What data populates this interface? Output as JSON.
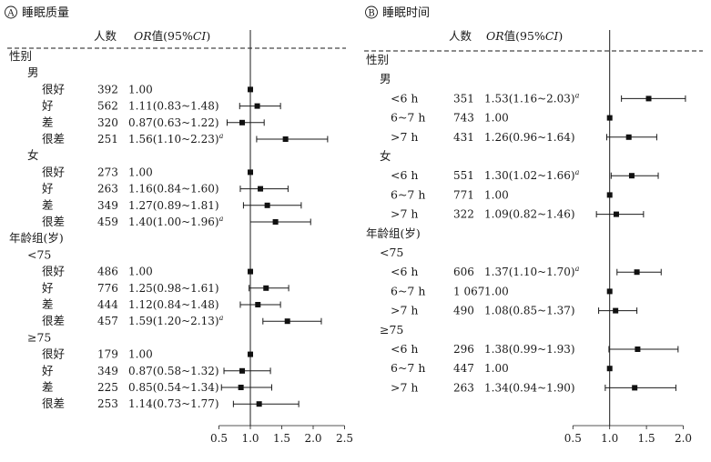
{
  "chart_data": [
    {
      "type": "forest",
      "panel_label": "A",
      "title": "睡眠质量",
      "header_n": "人数",
      "header_or_italic": "OR",
      "header_or_rest": "值(95%",
      "header_ci_italic": "CI",
      "header_close": ")",
      "xlim": [
        0.5,
        2.5
      ],
      "xticks": [
        "0.5",
        "1.0",
        "1.5",
        "2.0",
        "2.5"
      ],
      "ref_line": 1.0,
      "rows": [
        {
          "kind": "group",
          "label": "性别"
        },
        {
          "kind": "sub",
          "label": "男"
        },
        {
          "kind": "item",
          "label": "很好",
          "n": "392",
          "text": "1.00",
          "or": 1.0,
          "lo": 1.0,
          "hi": 1.0,
          "sig": ""
        },
        {
          "kind": "item",
          "label": "好",
          "n": "562",
          "text": "1.11(0.83~1.48)",
          "or": 1.11,
          "lo": 0.83,
          "hi": 1.48,
          "sig": ""
        },
        {
          "kind": "item",
          "label": "差",
          "n": "320",
          "text": "0.87(0.63~1.22)",
          "or": 0.87,
          "lo": 0.63,
          "hi": 1.22,
          "sig": ""
        },
        {
          "kind": "item",
          "label": "很差",
          "n": "251",
          "text": "1.56(1.10~2.23)",
          "or": 1.56,
          "lo": 1.1,
          "hi": 2.23,
          "sig": "a"
        },
        {
          "kind": "sub",
          "label": "女"
        },
        {
          "kind": "item",
          "label": "很好",
          "n": "273",
          "text": "1.00",
          "or": 1.0,
          "lo": 1.0,
          "hi": 1.0,
          "sig": ""
        },
        {
          "kind": "item",
          "label": "好",
          "n": "263",
          "text": "1.16(0.84~1.60)",
          "or": 1.16,
          "lo": 0.84,
          "hi": 1.6,
          "sig": ""
        },
        {
          "kind": "item",
          "label": "差",
          "n": "349",
          "text": "1.27(0.89~1.81)",
          "or": 1.27,
          "lo": 0.89,
          "hi": 1.81,
          "sig": ""
        },
        {
          "kind": "item",
          "label": "很差",
          "n": "459",
          "text": "1.40(1.00~1.96)",
          "or": 1.4,
          "lo": 1.0,
          "hi": 1.96,
          "sig": "a"
        },
        {
          "kind": "group",
          "label": "年龄组(岁)"
        },
        {
          "kind": "sub",
          "label": "<75"
        },
        {
          "kind": "item",
          "label": "很好",
          "n": "486",
          "text": "1.00",
          "or": 1.0,
          "lo": 1.0,
          "hi": 1.0,
          "sig": ""
        },
        {
          "kind": "item",
          "label": "好",
          "n": "776",
          "text": "1.25(0.98~1.61)",
          "or": 1.25,
          "lo": 0.98,
          "hi": 1.61,
          "sig": ""
        },
        {
          "kind": "item",
          "label": "差",
          "n": "444",
          "text": "1.12(0.84~1.48)",
          "or": 1.12,
          "lo": 0.84,
          "hi": 1.48,
          "sig": ""
        },
        {
          "kind": "item",
          "label": "很差",
          "n": "457",
          "text": "1.59(1.20~2.13)",
          "or": 1.59,
          "lo": 1.2,
          "hi": 2.13,
          "sig": "a"
        },
        {
          "kind": "sub",
          "label": "≥75"
        },
        {
          "kind": "item",
          "label": "很好",
          "n": "179",
          "text": "1.00",
          "or": 1.0,
          "lo": 1.0,
          "hi": 1.0,
          "sig": ""
        },
        {
          "kind": "item",
          "label": "好",
          "n": "349",
          "text": "0.87(0.58~1.32)",
          "or": 0.87,
          "lo": 0.58,
          "hi": 1.32,
          "sig": ""
        },
        {
          "kind": "item",
          "label": "差",
          "n": "225",
          "text": "0.85(0.54~1.34)",
          "or": 0.85,
          "lo": 0.54,
          "hi": 1.34,
          "sig": ""
        },
        {
          "kind": "item",
          "label": "很差",
          "n": "253",
          "text": "1.14(0.73~1.77)",
          "or": 1.14,
          "lo": 0.73,
          "hi": 1.77,
          "sig": ""
        }
      ]
    },
    {
      "type": "forest",
      "panel_label": "B",
      "title": "睡眠时间",
      "header_n": "人数",
      "header_or_italic": "OR",
      "header_or_rest": "值(95%",
      "header_ci_italic": "CI",
      "header_close": ")",
      "xlim": [
        0.5,
        2.0
      ],
      "xticks": [
        "0.5",
        "1.0",
        "1.5",
        "2.0"
      ],
      "ref_line": 1.0,
      "rows": [
        {
          "kind": "group",
          "label": "性别"
        },
        {
          "kind": "sub",
          "label": "男"
        },
        {
          "kind": "item",
          "label": "<6 h",
          "n": "351",
          "text": "1.53(1.16~2.03)",
          "or": 1.53,
          "lo": 1.16,
          "hi": 2.03,
          "sig": "a"
        },
        {
          "kind": "item",
          "label": "6~7 h",
          "n": "743",
          "text": "1.00",
          "or": 1.0,
          "lo": 1.0,
          "hi": 1.0,
          "sig": ""
        },
        {
          "kind": "item",
          "label": ">7 h",
          "n": "431",
          "text": "1.26(0.96~1.64)",
          "or": 1.26,
          "lo": 0.96,
          "hi": 1.64,
          "sig": ""
        },
        {
          "kind": "sub",
          "label": "女"
        },
        {
          "kind": "item",
          "label": "<6 h",
          "n": "551",
          "text": "1.30(1.02~1.66)",
          "or": 1.3,
          "lo": 1.02,
          "hi": 1.66,
          "sig": "a"
        },
        {
          "kind": "item",
          "label": "6~7 h",
          "n": "771",
          "text": "1.00",
          "or": 1.0,
          "lo": 1.0,
          "hi": 1.0,
          "sig": ""
        },
        {
          "kind": "item",
          "label": ">7 h",
          "n": "322",
          "text": "1.09(0.82~1.46)",
          "or": 1.09,
          "lo": 0.82,
          "hi": 1.46,
          "sig": ""
        },
        {
          "kind": "group",
          "label": "年龄组(岁)"
        },
        {
          "kind": "sub",
          "label": "<75"
        },
        {
          "kind": "item",
          "label": "<6 h",
          "n": "606",
          "text": "1.37(1.10~1.70)",
          "or": 1.37,
          "lo": 1.1,
          "hi": 1.7,
          "sig": "a"
        },
        {
          "kind": "item",
          "label": "6~7 h",
          "n": "1 067",
          "text": "1.00",
          "or": 1.0,
          "lo": 1.0,
          "hi": 1.0,
          "sig": ""
        },
        {
          "kind": "item",
          "label": ">7 h",
          "n": "490",
          "text": "1.08(0.85~1.37)",
          "or": 1.08,
          "lo": 0.85,
          "hi": 1.37,
          "sig": ""
        },
        {
          "kind": "sub",
          "label": "≥75"
        },
        {
          "kind": "item",
          "label": "<6 h",
          "n": "296",
          "text": "1.38(0.99~1.93)",
          "or": 1.38,
          "lo": 0.99,
          "hi": 1.93,
          "sig": ""
        },
        {
          "kind": "item",
          "label": "6~7 h",
          "n": "447",
          "text": "1.00",
          "or": 1.0,
          "lo": 1.0,
          "hi": 1.0,
          "sig": ""
        },
        {
          "kind": "item",
          "label": ">7 h",
          "n": "263",
          "text": "1.34(0.94~1.90)",
          "or": 1.34,
          "lo": 0.94,
          "hi": 1.9,
          "sig": ""
        }
      ]
    }
  ]
}
